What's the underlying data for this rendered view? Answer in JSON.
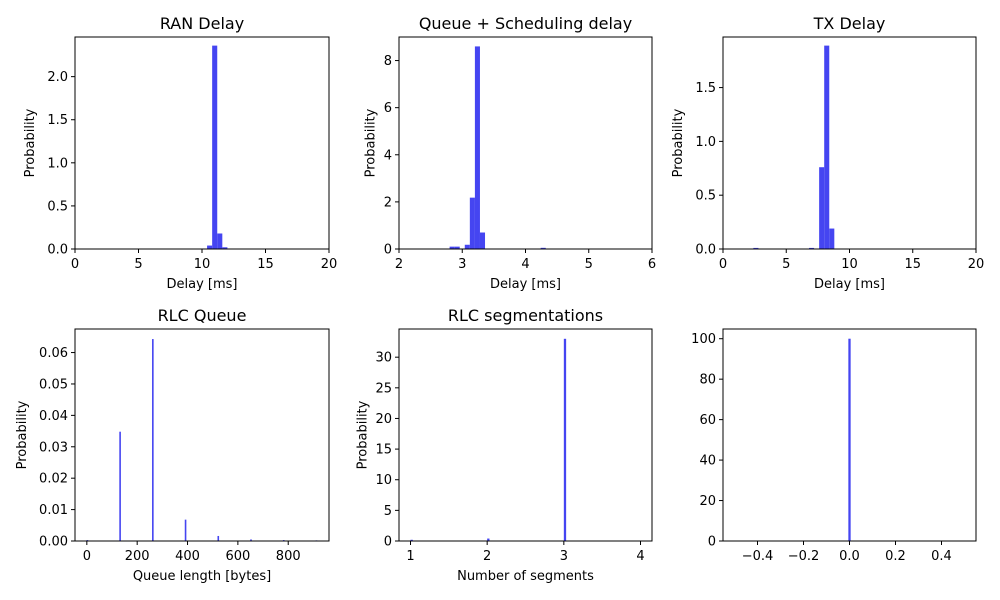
{
  "chart_data": [
    {
      "type": "bar",
      "title": "RAN Delay",
      "xlabel": "Delay [ms]",
      "ylabel": "Probability",
      "xlim": [
        0,
        20
      ],
      "ylim": [
        0,
        2.46
      ],
      "xticks": [
        0,
        5,
        10,
        15,
        20
      ],
      "xtick_labels": [
        "0",
        "5",
        "10",
        "15",
        "20"
      ],
      "yticks": [
        0,
        0.5,
        1.0,
        1.5,
        2.0
      ],
      "ytick_labels": [
        "0.0",
        "0.5",
        "1.0",
        "1.5",
        "2.0"
      ],
      "bar_width": 0.4,
      "x": [
        10.6,
        11.0,
        11.4,
        11.8
      ],
      "values": [
        0.04,
        2.36,
        0.18,
        0.02
      ],
      "color": "#3b3bf0"
    },
    {
      "type": "bar",
      "title": "Queue + Scheduling delay",
      "xlabel": "Delay [ms]",
      "ylabel": "Probability",
      "xlim": [
        2,
        6
      ],
      "ylim": [
        0,
        9.0
      ],
      "xticks": [
        2,
        3,
        4,
        5,
        6
      ],
      "xtick_labels": [
        "2",
        "3",
        "4",
        "5",
        "6"
      ],
      "yticks": [
        0,
        2,
        4,
        6,
        8
      ],
      "ytick_labels": [
        "0",
        "2",
        "4",
        "6",
        "8"
      ],
      "bar_width": 0.08,
      "x": [
        2.84,
        2.92,
        3.08,
        3.16,
        3.24,
        3.32,
        4.28
      ],
      "values": [
        0.1,
        0.1,
        0.18,
        2.18,
        8.6,
        0.7,
        0.05
      ],
      "color": "#3b3bf0"
    },
    {
      "type": "bar",
      "title": "TX Delay",
      "xlabel": "Delay [ms]",
      "ylabel": "Probability",
      "xlim": [
        0,
        20
      ],
      "ylim": [
        0,
        1.97
      ],
      "xticks": [
        0,
        5,
        10,
        15,
        20
      ],
      "xtick_labels": [
        "0",
        "5",
        "10",
        "15",
        "20"
      ],
      "yticks": [
        0,
        0.5,
        1.0,
        1.5
      ],
      "ytick_labels": [
        "0.0",
        "0.5",
        "1.0",
        "1.5"
      ],
      "bar_width": 0.4,
      "x": [
        2.6,
        7.0,
        7.8,
        8.2,
        8.6
      ],
      "values": [
        0.01,
        0.01,
        0.76,
        1.89,
        0.19
      ],
      "color": "#3b3bf0"
    },
    {
      "type": "bar",
      "title": "RLC Queue",
      "xlabel": "Queue length [bytes]",
      "ylabel": "Probability",
      "xlim": [
        -47,
        962
      ],
      "ylim": [
        0,
        0.0675
      ],
      "xticks": [
        0,
        200,
        400,
        600,
        800
      ],
      "xtick_labels": [
        "0",
        "200",
        "400",
        "600",
        "800"
      ],
      "yticks": [
        0,
        0.01,
        0.02,
        0.03,
        0.04,
        0.05,
        0.06
      ],
      "ytick_labels": [
        "0.00",
        "0.01",
        "0.02",
        "0.03",
        "0.04",
        "0.05",
        "0.06"
      ],
      "bar_width": 6,
      "x": [
        2,
        132,
        262,
        392,
        522,
        652,
        782,
        912
      ],
      "values": [
        0.0003,
        0.0348,
        0.0643,
        0.0068,
        0.0016,
        0.0005,
        0.0003,
        0.0002
      ],
      "color": "#3b3bf0"
    },
    {
      "type": "bar",
      "title": "RLC segmentations",
      "xlabel": "Number of segments",
      "ylabel": "Probability",
      "xlim": [
        0.85,
        4.15
      ],
      "ylim": [
        0,
        34.6
      ],
      "xticks": [
        1,
        2,
        3,
        4
      ],
      "xtick_labels": [
        "1",
        "2",
        "3",
        "4"
      ],
      "yticks": [
        0,
        5,
        10,
        15,
        20,
        25,
        30
      ],
      "ytick_labels": [
        "0",
        "5",
        "10",
        "15",
        "20",
        "25",
        "30"
      ],
      "bar_width": 0.03,
      "x": [
        1.015,
        2.015,
        3.015
      ],
      "values": [
        0.2,
        0.4,
        33.0
      ],
      "color": "#3b3bf0"
    },
    {
      "type": "bar",
      "title": "",
      "xlabel": "",
      "ylabel": "",
      "xlim": [
        -0.55,
        0.55
      ],
      "ylim": [
        0,
        104.8
      ],
      "xticks": [
        -0.4,
        -0.2,
        0.0,
        0.2,
        0.4
      ],
      "xtick_labels": [
        "−0.4",
        "−0.2",
        "0.0",
        "0.2",
        "0.4"
      ],
      "yticks": [
        0,
        20,
        40,
        60,
        80,
        100
      ],
      "ytick_labels": [
        "0",
        "20",
        "40",
        "60",
        "80",
        "100"
      ],
      "bar_width": 0.01,
      "x": [
        0.0
      ],
      "values": [
        100
      ],
      "color": "#3b3bf0"
    }
  ]
}
